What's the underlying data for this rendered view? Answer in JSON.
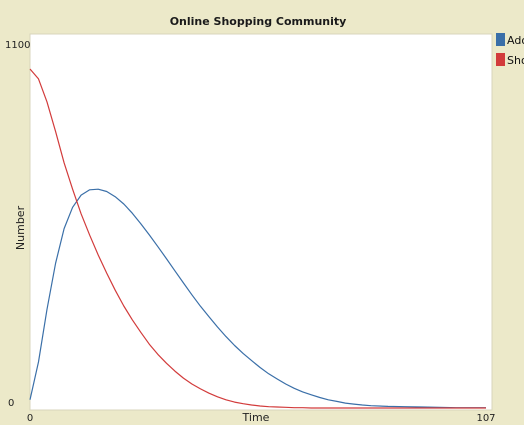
{
  "chart_data": {
    "type": "line",
    "title": "Online Shopping Community",
    "xlabel": "Time",
    "ylabel": "Number",
    "xlim": [
      0,
      107
    ],
    "ylim": [
      0,
      1100
    ],
    "x_tick_labels": [
      "0",
      "107"
    ],
    "y_tick_labels": [
      "1100",
      "0"
    ],
    "legend_placement": "top-right outside",
    "grid": false,
    "series": [
      {
        "name": "Adop",
        "color": "#3a6fa8",
        "x": [
          0,
          2,
          4,
          6,
          8,
          10,
          12,
          14,
          16,
          18,
          20,
          22,
          24,
          26,
          28,
          30,
          32,
          34,
          36,
          38,
          40,
          42,
          44,
          46,
          48,
          50,
          52,
          54,
          56,
          58,
          60,
          62,
          64,
          66,
          68,
          70,
          72,
          74,
          76,
          78,
          80,
          84,
          88,
          92,
          96,
          100,
          104,
          107
        ],
        "values": [
          25,
          140,
          300,
          440,
          545,
          610,
          647,
          663,
          665,
          658,
          642,
          620,
          592,
          560,
          526,
          490,
          454,
          417,
          380,
          344,
          309,
          277,
          246,
          217,
          190,
          166,
          144,
          123,
          104,
          88,
          73,
          60,
          49,
          40,
          32,
          25,
          20,
          15,
          12,
          9,
          7,
          5,
          4,
          3,
          2,
          1,
          1,
          1
        ]
      },
      {
        "name": "Shop",
        "color": "#d23b3b",
        "x": [
          0,
          2,
          4,
          6,
          8,
          10,
          12,
          14,
          16,
          18,
          20,
          22,
          24,
          26,
          28,
          30,
          32,
          34,
          36,
          38,
          40,
          42,
          44,
          46,
          48,
          50,
          52,
          54,
          56,
          58,
          60,
          62,
          64,
          66,
          68,
          72,
          76,
          80,
          90,
          100,
          107
        ],
        "values": [
          1030,
          1000,
          930,
          840,
          745,
          665,
          590,
          525,
          465,
          410,
          358,
          310,
          268,
          230,
          194,
          163,
          136,
          112,
          91,
          73,
          58,
          45,
          34,
          25,
          18,
          13,
          9,
          6,
          4,
          3,
          2,
          1,
          1,
          0,
          0,
          0,
          0,
          0,
          0,
          0,
          0
        ]
      }
    ]
  }
}
